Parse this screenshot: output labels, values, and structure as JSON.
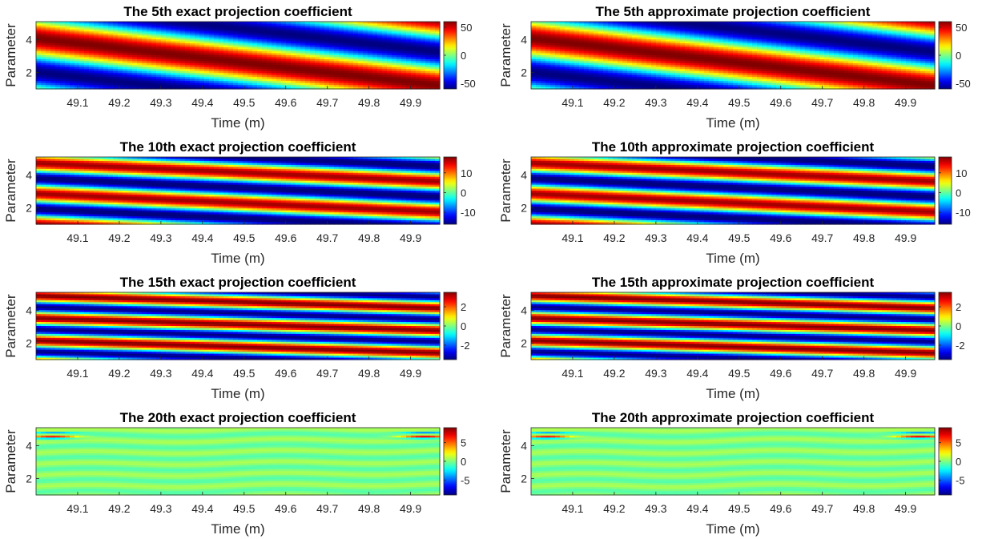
{
  "chart_data": [
    {
      "type": "heatmap",
      "title": "The 5th exact projection coefficient",
      "xlabel": "Time (m)",
      "ylabel": "Parameter",
      "xticks": [
        "49.1",
        "49.2",
        "49.3",
        "49.4",
        "49.5",
        "49.6",
        "49.7",
        "49.8",
        "49.9"
      ],
      "yticks": [
        "2",
        "4"
      ],
      "xlim": [
        49.0,
        49.97
      ],
      "ylim": [
        1,
        5.1
      ],
      "colorbar_ticks": [
        "50",
        "0",
        "-50"
      ],
      "colorbar_values": [
        50,
        0,
        -50
      ],
      "clim": [
        -60,
        60
      ],
      "pattern": {
        "bands": 1.0,
        "slope": 0.7,
        "phase": 0.0,
        "amplitude": 60
      }
    },
    {
      "type": "heatmap",
      "title": "The 5th approximate projection coefficient",
      "xlabel": "Time (m)",
      "ylabel": "Parameter",
      "xticks": [
        "49.1",
        "49.2",
        "49.3",
        "49.4",
        "49.5",
        "49.6",
        "49.7",
        "49.8",
        "49.9"
      ],
      "yticks": [
        "2",
        "4"
      ],
      "xlim": [
        49.0,
        49.97
      ],
      "ylim": [
        1,
        5.1
      ],
      "colorbar_ticks": [
        "50",
        "0",
        "-50"
      ],
      "colorbar_values": [
        50,
        0,
        -50
      ],
      "clim": [
        -60,
        60
      ],
      "pattern": {
        "bands": 1.0,
        "slope": 0.7,
        "phase": 0.0,
        "amplitude": 60
      }
    },
    {
      "type": "heatmap",
      "title": "The 10th exact projection coefficient",
      "xlabel": "Time (m)",
      "ylabel": "Parameter",
      "xticks": [
        "49.1",
        "49.2",
        "49.3",
        "49.4",
        "49.5",
        "49.6",
        "49.7",
        "49.8",
        "49.9"
      ],
      "yticks": [
        "2",
        "4"
      ],
      "xlim": [
        49.0,
        49.97
      ],
      "ylim": [
        1,
        5.1
      ],
      "colorbar_ticks": [
        "10",
        "0",
        "-10"
      ],
      "colorbar_values": [
        10,
        0,
        -10
      ],
      "clim": [
        -16,
        18
      ],
      "pattern": {
        "bands": 2.2,
        "slope": 0.6,
        "phase": 0.3,
        "amplitude": 17
      }
    },
    {
      "type": "heatmap",
      "title": "The 10th approximate projection coefficient",
      "xlabel": "Time (m)",
      "ylabel": "Parameter",
      "xticks": [
        "49.1",
        "49.2",
        "49.3",
        "49.4",
        "49.5",
        "49.6",
        "49.7",
        "49.8",
        "49.9"
      ],
      "yticks": [
        "2",
        "4"
      ],
      "xlim": [
        49.0,
        49.97
      ],
      "ylim": [
        1,
        5.1
      ],
      "colorbar_ticks": [
        "10",
        "0",
        "-10"
      ],
      "colorbar_values": [
        10,
        0,
        -10
      ],
      "clim": [
        -16,
        18
      ],
      "pattern": {
        "bands": 2.2,
        "slope": 0.6,
        "phase": 0.3,
        "amplitude": 17
      }
    },
    {
      "type": "heatmap",
      "title": "The 15th exact projection coefficient",
      "xlabel": "Time (m)",
      "ylabel": "Parameter",
      "xticks": [
        "49.1",
        "49.2",
        "49.3",
        "49.4",
        "49.5",
        "49.6",
        "49.7",
        "49.8",
        "49.9"
      ],
      "yticks": [
        "2",
        "4"
      ],
      "xlim": [
        49.0,
        49.97
      ],
      "ylim": [
        1,
        5.1
      ],
      "colorbar_ticks": [
        "2",
        "0",
        "-2"
      ],
      "colorbar_values": [
        2,
        0,
        -2
      ],
      "clim": [
        -3.5,
        3.5
      ],
      "pattern": {
        "bands": 3.0,
        "slope": 0.55,
        "phase": 0.6,
        "amplitude": 3.5
      }
    },
    {
      "type": "heatmap",
      "title": "The 15th approximate projection coefficient",
      "xlabel": "Time (m)",
      "ylabel": "Parameter",
      "xticks": [
        "49.1",
        "49.2",
        "49.3",
        "49.4",
        "49.5",
        "49.6",
        "49.7",
        "49.8",
        "49.9"
      ],
      "yticks": [
        "2",
        "4"
      ],
      "xlim": [
        49.0,
        49.97
      ],
      "ylim": [
        1,
        5.1
      ],
      "colorbar_ticks": [
        "2",
        "0",
        "-2"
      ],
      "colorbar_values": [
        2,
        0,
        -2
      ],
      "clim": [
        -3.5,
        3.5
      ],
      "pattern": {
        "bands": 3.0,
        "slope": 0.55,
        "phase": 0.6,
        "amplitude": 3.5
      }
    },
    {
      "type": "heatmap",
      "title": "The 20th exact projection coefficient",
      "xlabel": "Time (m)",
      "ylabel": "Parameter",
      "xticks": [
        "49.1",
        "49.2",
        "49.3",
        "49.4",
        "49.5",
        "49.6",
        "49.7",
        "49.8",
        "49.9"
      ],
      "yticks": [
        "2",
        "4"
      ],
      "xlim": [
        49.0,
        49.97
      ],
      "ylim": [
        1,
        5.1
      ],
      "colorbar_ticks": [
        "5",
        "0",
        "-5"
      ],
      "colorbar_values": [
        5,
        0,
        -5
      ],
      "clim": [
        -9,
        9
      ],
      "pattern": {
        "bands": 6.0,
        "slope": 0.2,
        "phase": 0.0,
        "amplitude": 0.8
      }
    },
    {
      "type": "heatmap",
      "title": "The 20th approximate projection coefficient",
      "xlabel": "Time (m)",
      "ylabel": "Parameter",
      "xticks": [
        "49.1",
        "49.2",
        "49.3",
        "49.4",
        "49.5",
        "49.6",
        "49.7",
        "49.8",
        "49.9"
      ],
      "yticks": [
        "2",
        "4"
      ],
      "xlim": [
        49.0,
        49.97
      ],
      "ylim": [
        1,
        5.1
      ],
      "colorbar_ticks": [
        "5",
        "0",
        "-5"
      ],
      "colorbar_values": [
        5,
        0,
        -5
      ],
      "clim": [
        -9,
        9
      ],
      "pattern": {
        "bands": 6.0,
        "slope": 0.2,
        "phase": 0.0,
        "amplitude": 0.8
      }
    }
  ]
}
